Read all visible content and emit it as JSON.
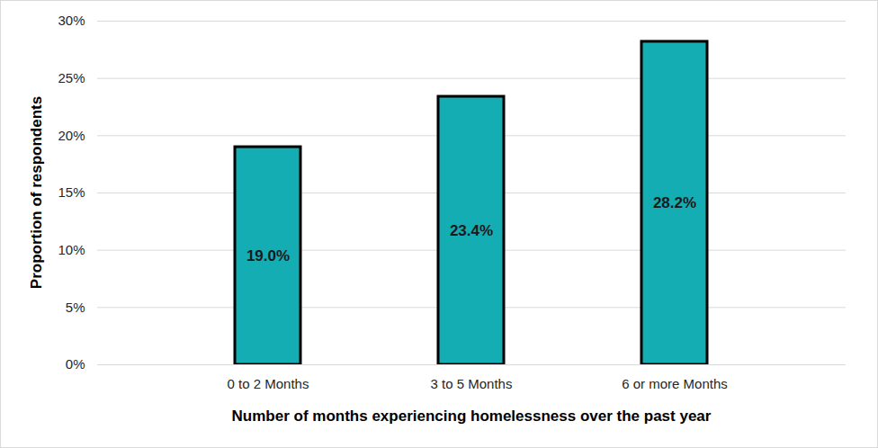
{
  "chart_data": {
    "type": "bar",
    "x_label": "Number of months experiencing homelessness over the past year",
    "y_label": "Proportion of respondents",
    "categories": [
      "0 to 2 Months",
      "3 to 5 Months",
      "6 or more Months"
    ],
    "values": [
      19.0,
      23.4,
      28.2
    ],
    "value_labels": [
      "19.0%",
      "23.4%",
      "28.2%"
    ],
    "color": "#14adb4",
    "ylim": [
      0,
      30
    ],
    "yticks": [
      {
        "value": 0,
        "label": "0%"
      },
      {
        "value": 5,
        "label": "5%"
      },
      {
        "value": 10,
        "label": "10%"
      },
      {
        "value": 15,
        "label": "15%"
      },
      {
        "value": 20,
        "label": "20%"
      },
      {
        "value": 25,
        "label": "25%"
      },
      {
        "value": 30,
        "label": "30%"
      }
    ],
    "grid": true,
    "data_labels": true
  }
}
